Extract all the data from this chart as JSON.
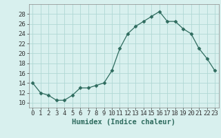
{
  "x": [
    0,
    1,
    2,
    3,
    4,
    5,
    6,
    7,
    8,
    9,
    10,
    11,
    12,
    13,
    14,
    15,
    16,
    17,
    18,
    19,
    20,
    21,
    22,
    23
  ],
  "y": [
    14,
    12,
    11.5,
    10.5,
    10.5,
    11.5,
    13,
    13,
    13.5,
    14,
    16.5,
    21,
    24,
    25.5,
    26.5,
    27.5,
    28.5,
    26.5,
    26.5,
    25,
    24,
    21,
    19,
    16.5
  ],
  "line_color": "#2e6b5e",
  "marker": "D",
  "marker_size": 2.5,
  "bg_color": "#d8f0ee",
  "grid_color": "#b0d8d4",
  "xlabel": "Humidex (Indice chaleur)",
  "xlabel_fontsize": 7.5,
  "tick_fontsize": 6.5,
  "ylim": [
    9,
    30
  ],
  "yticks": [
    10,
    12,
    14,
    16,
    18,
    20,
    22,
    24,
    26,
    28
  ],
  "xticks": [
    0,
    1,
    2,
    3,
    4,
    5,
    6,
    7,
    8,
    9,
    10,
    11,
    12,
    13,
    14,
    15,
    16,
    17,
    18,
    19,
    20,
    21,
    22,
    23
  ],
  "xlim": [
    -0.5,
    23.5
  ]
}
